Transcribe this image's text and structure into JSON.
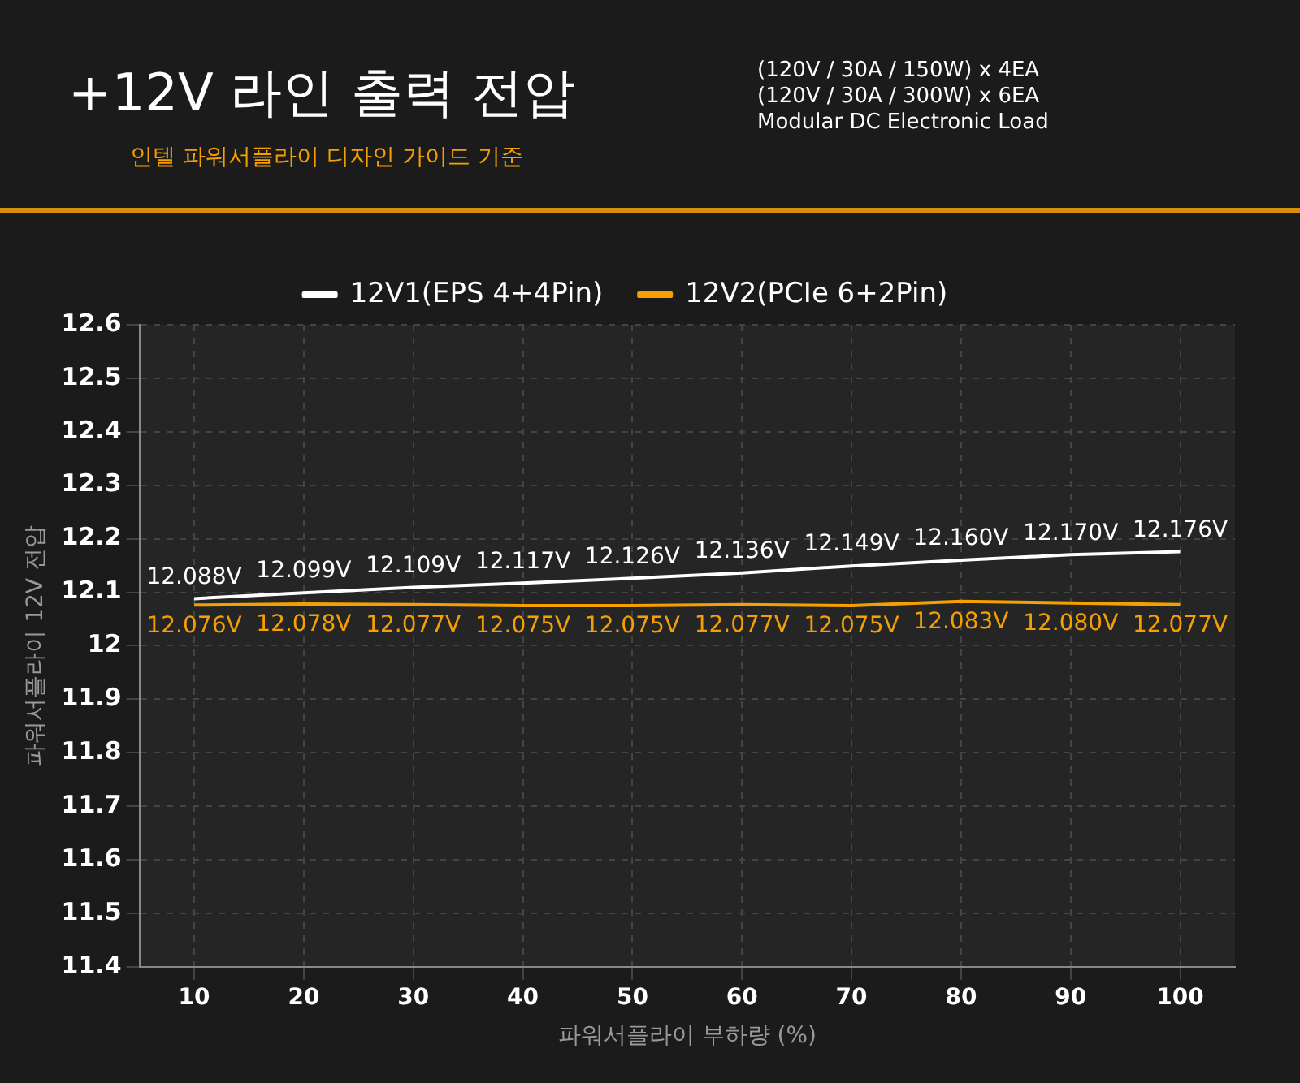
{
  "chart_data": {
    "type": "line",
    "title": "+12V 라인 출력 전압",
    "subtitle": "인텔 파워서플라이 디자인 가이드 기준",
    "annotations": [
      "(120V / 30A / 150W) x 4EA",
      "(120V / 30A / 300W) x 6EA",
      "Modular DC Electronic Load"
    ],
    "xlabel": "파워서플라이 부하량 (%)",
    "ylabel": "파워서플라이 12V 전압",
    "categories": [
      "10",
      "20",
      "30",
      "40",
      "50",
      "60",
      "70",
      "80",
      "90",
      "100"
    ],
    "series": [
      {
        "name": "12V1(EPS 4+4Pin)",
        "color": "#ffffff",
        "values": [
          12.088,
          12.099,
          12.109,
          12.117,
          12.126,
          12.136,
          12.149,
          12.16,
          12.17,
          12.176
        ],
        "value_labels": [
          "12.088V",
          "12.099V",
          "12.109V",
          "12.117V",
          "12.126V",
          "12.136V",
          "12.149V",
          "12.160V",
          "12.170V",
          "12.176V"
        ]
      },
      {
        "name": "12V2(PCIe 6+2Pin)",
        "color": "#f5a000",
        "values": [
          12.076,
          12.078,
          12.077,
          12.075,
          12.075,
          12.077,
          12.075,
          12.083,
          12.08,
          12.077
        ],
        "value_labels": [
          "12.076V",
          "12.078V",
          "12.077V",
          "12.075V",
          "12.075V",
          "12.077V",
          "12.075V",
          "12.083V",
          "12.080V",
          "12.077V"
        ]
      }
    ],
    "ylim": [
      11.4,
      12.6
    ],
    "yticks": [
      11.4,
      11.5,
      11.6,
      11.7,
      11.8,
      11.9,
      12,
      12.1,
      12.2,
      12.3,
      12.4,
      12.5,
      12.6
    ],
    "grid": true,
    "legend": "top",
    "marker": "none",
    "line_style": "solid"
  }
}
